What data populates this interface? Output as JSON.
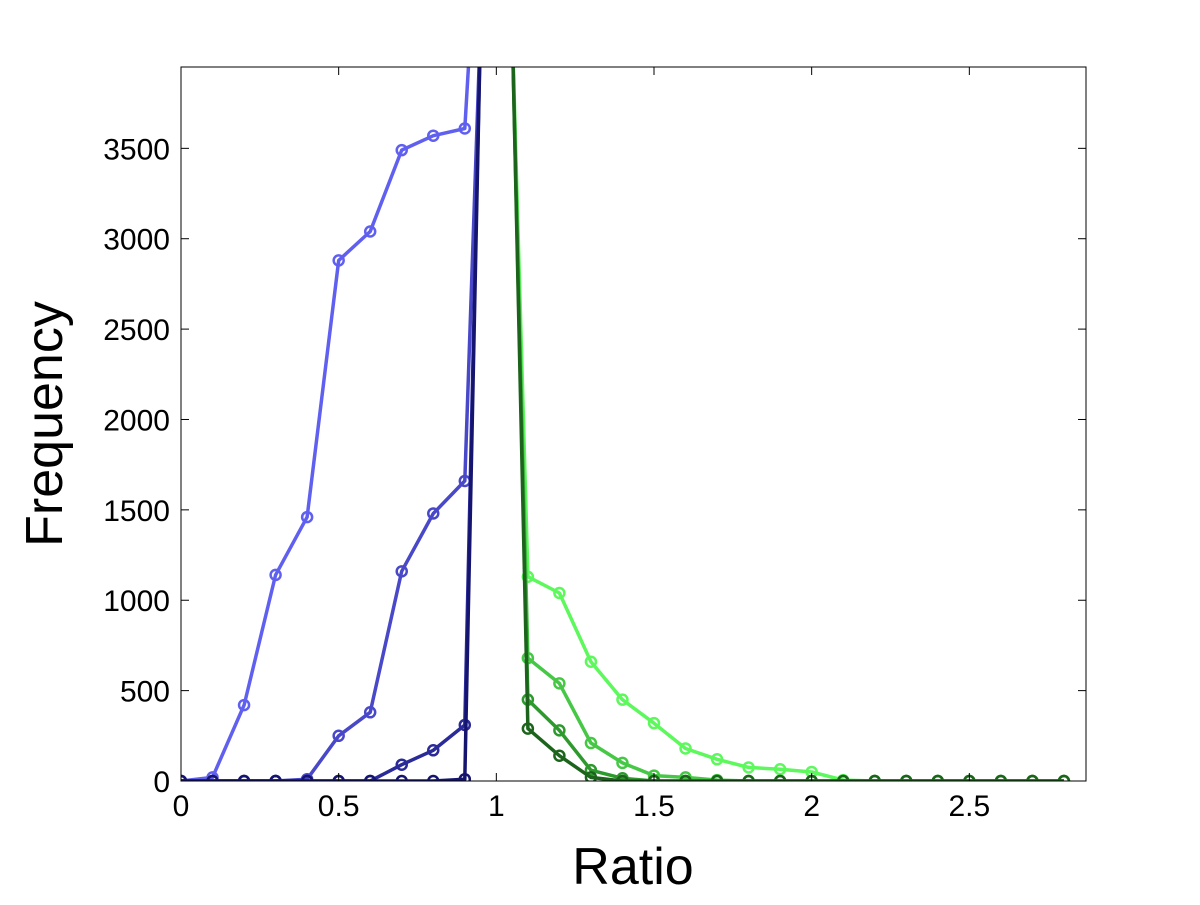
{
  "chart_data": {
    "type": "line",
    "title": "",
    "xlabel": "Ratio",
    "ylabel": "Frequency",
    "xlim": [
      0,
      2.87
    ],
    "ylim": [
      0,
      3950
    ],
    "xticks": [
      0,
      0.5,
      1,
      1.5,
      2,
      2.5
    ],
    "xtick_labels": [
      "0",
      "0.5",
      "1",
      "1.5",
      "2",
      "2.5"
    ],
    "yticks": [
      0,
      500,
      1000,
      1500,
      2000,
      2500,
      3000,
      3500
    ],
    "ytick_labels": [
      "0",
      "500",
      "1000",
      "1500",
      "2000",
      "2500",
      "3000",
      "3500"
    ],
    "grid": false,
    "legend": "none",
    "marker": "circle",
    "series": [
      {
        "color": "#6060f0",
        "x": [
          0,
          0.1,
          0.2,
          0.3,
          0.4,
          0.5,
          0.6,
          0.7,
          0.8,
          0.9,
          0.92
        ],
        "y": [
          0,
          20,
          420,
          1140,
          1460,
          2880,
          3040,
          3490,
          3570,
          3610,
          4200
        ]
      },
      {
        "color": "#4848c8",
        "x": [
          0,
          0.1,
          0.2,
          0.3,
          0.4,
          0.5,
          0.6,
          0.7,
          0.8,
          0.9,
          0.95
        ],
        "y": [
          0,
          0,
          0,
          0,
          10,
          250,
          380,
          1160,
          1480,
          1660,
          4200
        ]
      },
      {
        "color": "#2a2a98",
        "x": [
          0,
          0.1,
          0.2,
          0.3,
          0.4,
          0.5,
          0.6,
          0.7,
          0.8,
          0.9,
          0.95
        ],
        "y": [
          0,
          0,
          0,
          0,
          0,
          0,
          0,
          90,
          170,
          310,
          4200
        ]
      },
      {
        "color": "#151570",
        "x": [
          0,
          0.1,
          0.2,
          0.3,
          0.4,
          0.5,
          0.6,
          0.7,
          0.8,
          0.9,
          0.95
        ],
        "y": [
          0,
          0,
          0,
          0,
          0,
          0,
          0,
          0,
          0,
          10,
          4200
        ]
      },
      {
        "color": "#5cf85c",
        "x": [
          1.05,
          1.1,
          1.2,
          1.3,
          1.4,
          1.5,
          1.6,
          1.7,
          1.8,
          1.9,
          2.0,
          2.1,
          2.2,
          2.3,
          2.4,
          2.5,
          2.6,
          2.7,
          2.8
        ],
        "y": [
          4200,
          1130,
          1040,
          660,
          450,
          320,
          180,
          120,
          75,
          65,
          50,
          5,
          0,
          0,
          0,
          0,
          0,
          0,
          0
        ]
      },
      {
        "color": "#46c846",
        "x": [
          1.05,
          1.1,
          1.2,
          1.3,
          1.4,
          1.5,
          1.6,
          1.7,
          1.8,
          1.9,
          2.0,
          2.1,
          2.2,
          2.3,
          2.4,
          2.5,
          2.6,
          2.7,
          2.8
        ],
        "y": [
          4200,
          680,
          540,
          210,
          100,
          30,
          20,
          5,
          0,
          0,
          0,
          0,
          0,
          0,
          0,
          0,
          0,
          0,
          0
        ]
      },
      {
        "color": "#2e9a2e",
        "x": [
          1.05,
          1.1,
          1.2,
          1.3,
          1.4,
          1.5,
          1.6,
          1.7,
          1.8,
          1.9,
          2.0,
          2.1,
          2.2,
          2.3,
          2.4,
          2.5,
          2.6,
          2.7,
          2.8
        ],
        "y": [
          4200,
          450,
          280,
          60,
          15,
          0,
          0,
          0,
          0,
          0,
          0,
          0,
          0,
          0,
          0,
          0,
          0,
          0,
          0
        ]
      },
      {
        "color": "#1c641c",
        "x": [
          1.05,
          1.1,
          1.2,
          1.3,
          1.4,
          1.5,
          1.6,
          1.7,
          1.8,
          1.9,
          2.0,
          2.1,
          2.2,
          2.3,
          2.4,
          2.5,
          2.6,
          2.7,
          2.8
        ],
        "y": [
          4200,
          290,
          140,
          20,
          0,
          0,
          0,
          0,
          0,
          0,
          0,
          0,
          0,
          0,
          0,
          0,
          0,
          0,
          0
        ]
      }
    ]
  }
}
